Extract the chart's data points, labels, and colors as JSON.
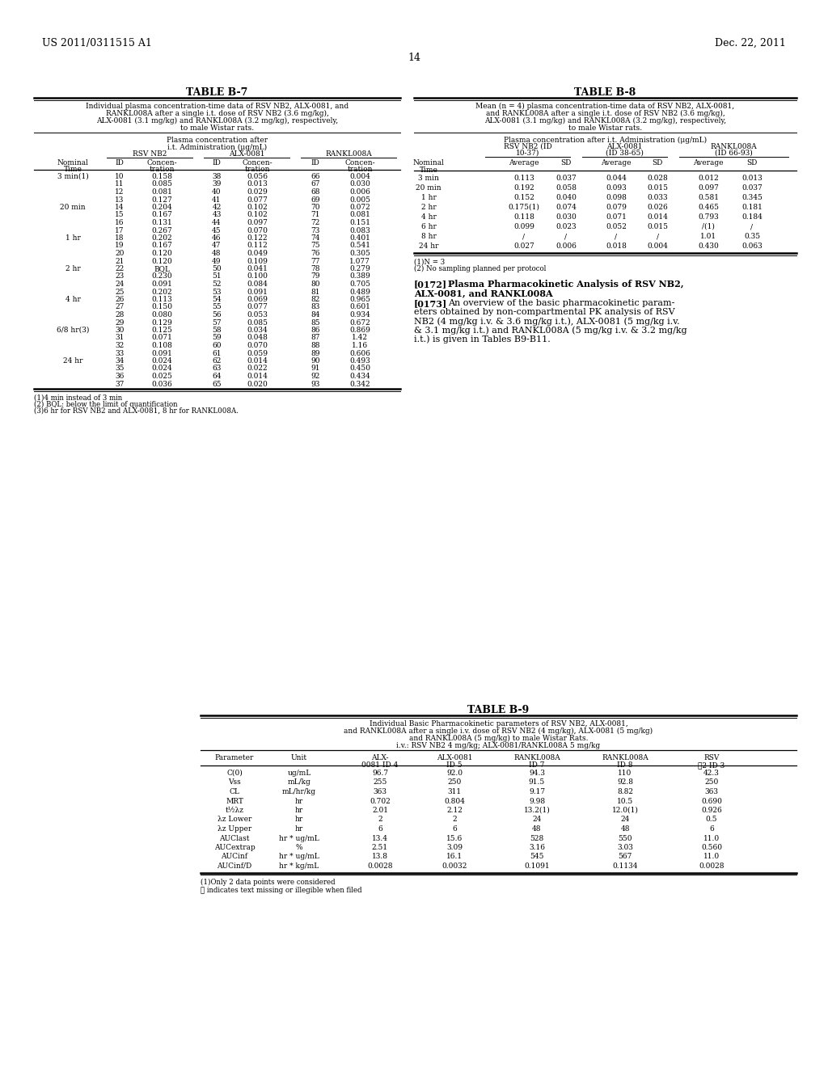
{
  "header_left": "US 2011/0311515 A1",
  "header_right": "Dec. 22, 2011",
  "page_number": "14",
  "table_b7_title": "TABLE B-7",
  "table_b7_caption_lines": [
    "Individual plasma concentration-time data of RSV NB2, ALX-0081, and",
    "RANKL008A after a single i.t. dose of RSV NB2 (3.6 mg/kg),",
    "ALX-0081 (3.1 mg/kg) and RANKL008A (3.2 mg/kg), respectively,",
    "to male Wistar rats."
  ],
  "table_b7_data": [
    [
      "3 min(1)",
      "10",
      "0.158",
      "38",
      "0.056",
      "66",
      "0.004"
    ],
    [
      "",
      "11",
      "0.085",
      "39",
      "0.013",
      "67",
      "0.030"
    ],
    [
      "",
      "12",
      "0.081",
      "40",
      "0.029",
      "68",
      "0.006"
    ],
    [
      "",
      "13",
      "0.127",
      "41",
      "0.077",
      "69",
      "0.005"
    ],
    [
      "20 min",
      "14",
      "0.204",
      "42",
      "0.102",
      "70",
      "0.072"
    ],
    [
      "",
      "15",
      "0.167",
      "43",
      "0.102",
      "71",
      "0.081"
    ],
    [
      "",
      "16",
      "0.131",
      "44",
      "0.097",
      "72",
      "0.151"
    ],
    [
      "",
      "17",
      "0.267",
      "45",
      "0.070",
      "73",
      "0.083"
    ],
    [
      "1 hr",
      "18",
      "0.202",
      "46",
      "0.122",
      "74",
      "0.401"
    ],
    [
      "",
      "19",
      "0.167",
      "47",
      "0.112",
      "75",
      "0.541"
    ],
    [
      "",
      "20",
      "0.120",
      "48",
      "0.049",
      "76",
      "0.305"
    ],
    [
      "",
      "21",
      "0.120",
      "49",
      "0.109",
      "77",
      "1.077"
    ],
    [
      "2 hr",
      "22",
      "BQL",
      "50",
      "0.041",
      "78",
      "0.279"
    ],
    [
      "",
      "23",
      "0.230",
      "51",
      "0.100",
      "79",
      "0.389"
    ],
    [
      "",
      "24",
      "0.091",
      "52",
      "0.084",
      "80",
      "0.705"
    ],
    [
      "",
      "25",
      "0.202",
      "53",
      "0.091",
      "81",
      "0.489"
    ],
    [
      "4 hr",
      "26",
      "0.113",
      "54",
      "0.069",
      "82",
      "0.965"
    ],
    [
      "",
      "27",
      "0.150",
      "55",
      "0.077",
      "83",
      "0.601"
    ],
    [
      "",
      "28",
      "0.080",
      "56",
      "0.053",
      "84",
      "0.934"
    ],
    [
      "",
      "29",
      "0.129",
      "57",
      "0.085",
      "85",
      "0.672"
    ],
    [
      "6/8 hr(3)",
      "30",
      "0.125",
      "58",
      "0.034",
      "86",
      "0.869"
    ],
    [
      "",
      "31",
      "0.071",
      "59",
      "0.048",
      "87",
      "1.42"
    ],
    [
      "",
      "32",
      "0.108",
      "60",
      "0.070",
      "88",
      "1.16"
    ],
    [
      "",
      "33",
      "0.091",
      "61",
      "0.059",
      "89",
      "0.606"
    ],
    [
      "24 hr",
      "34",
      "0.024",
      "62",
      "0.014",
      "90",
      "0.493"
    ],
    [
      "",
      "35",
      "0.024",
      "63",
      "0.022",
      "91",
      "0.450"
    ],
    [
      "",
      "36",
      "0.025",
      "64",
      "0.014",
      "92",
      "0.434"
    ],
    [
      "",
      "37",
      "0.036",
      "65",
      "0.020",
      "93",
      "0.342"
    ]
  ],
  "table_b7_footnotes": [
    "(1)4 min instead of 3 min",
    "(2) BQL: below the limit of quantification",
    "(3)6 hr for RSV NB2 and ALX-0081, 8 hr for RANKL008A."
  ],
  "table_b8_title": "TABLE B-8",
  "table_b8_caption_lines": [
    "Mean (n = 4) plasma concentration-time data of RSV NB2, ALX-0081,",
    "and RANKL008A after a single i.t. dose of RSV NB2 (3.6 mg/kg),",
    "ALX-0081 (3.1 mg/kg) and RANKL008A (3.2 mg/kg), respectively,",
    "to male Wistar rats."
  ],
  "table_b8_data": [
    [
      "3 min",
      "0.113",
      "0.037",
      "0.044",
      "0.028",
      "0.012",
      "0.013"
    ],
    [
      "20 min",
      "0.192",
      "0.058",
      "0.093",
      "0.015",
      "0.097",
      "0.037"
    ],
    [
      "1 hr",
      "0.152",
      "0.040",
      "0.098",
      "0.033",
      "0.581",
      "0.345"
    ],
    [
      "2 hr",
      "0.175(1)",
      "0.074",
      "0.079",
      "0.026",
      "0.465",
      "0.181"
    ],
    [
      "4 hr",
      "0.118",
      "0.030",
      "0.071",
      "0.014",
      "0.793",
      "0.184"
    ],
    [
      "6 hr",
      "0.099",
      "0.023",
      "0.052",
      "0.015",
      "/(1)",
      "/"
    ],
    [
      "8 hr",
      "/",
      "/",
      "/",
      "/",
      "1.01",
      "0.35"
    ],
    [
      "24 hr",
      "0.027",
      "0.006",
      "0.018",
      "0.004",
      "0.430",
      "0.063"
    ]
  ],
  "table_b8_footnotes": [
    "(1)N = 3",
    "(2) No sampling planned per protocol"
  ],
  "para_172_lines": [
    "[bold][0172][/bold]    Plasma Pharmacokinetic Analysis of RSV NB2,",
    "ALX-0081, and RANKL008A"
  ],
  "para_173_lines": [
    "[bold][0173][/bold]    An overview of the basic pharmacokinetic param-",
    "eters obtained by non-compartmental PK analysis of RSV",
    "NB2 (4 mg/kg i.v. & 3.6 mg/kg i.t.), ALX-0081 (5 mg/kg i.v.",
    "& 3.1 mg/kg i.t.) and RANKL008A (5 mg/kg i.v. & 3.2 mg/kg",
    "i.t.) is given in Tables B9-B11."
  ],
  "table_b9_title": "TABLE B-9",
  "table_b9_caption_lines": [
    "Individual Basic Pharmacokinetic parameters of RSV NB2, ALX-0081,",
    "and RANKL008A after a single i.v. dose of RSV NB2 (4 mg/kg), ALX-0081 (5 mg/kg)",
    "and RANKL008A (5 mg/kg) to male Wistar Rats.",
    "i.v.: RSV NB2 4 mg/kg; ALX-0081/RANKL008A 5 mg/kg"
  ],
  "table_b9_data": [
    [
      "C(0)",
      "ug/mL",
      "96.7",
      "92.0",
      "94.3",
      "110",
      "42.3"
    ],
    [
      "Vss",
      "mL/kg",
      "255",
      "250",
      "91.5",
      "92.8",
      "250"
    ],
    [
      "CL",
      "mL/hr/kg",
      "363",
      "311",
      "9.17",
      "8.82",
      "363"
    ],
    [
      "MRT",
      "hr",
      "0.702",
      "0.804",
      "9.98",
      "10.5",
      "0.690"
    ],
    [
      "t½λz",
      "hr",
      "2.01",
      "2.12",
      "13.2(1)",
      "12.0(1)",
      "0.926"
    ],
    [
      "λz Lower",
      "hr",
      "2",
      "2",
      "24",
      "24",
      "0.5"
    ],
    [
      "λz Upper",
      "hr",
      "6",
      "6",
      "48",
      "48",
      "6"
    ],
    [
      "AUClast",
      "hr * ug/mL",
      "13.4",
      "15.6",
      "528",
      "550",
      "11.0"
    ],
    [
      "AUCextrap",
      "%",
      "2.51",
      "3.09",
      "3.16",
      "3.03",
      "0.560"
    ],
    [
      "AUCinf",
      "hr * ug/mL",
      "13.8",
      "16.1",
      "545",
      "567",
      "11.0"
    ],
    [
      "AUCinf/D",
      "hr * kg/mL",
      "0.0028",
      "0.0032",
      "0.1091",
      "0.1134",
      "0.0028"
    ]
  ],
  "table_b9_footnotes": [
    "(1)Only 2 data points were considered",
    "Ⓡ indicates text missing or illegible when filed"
  ]
}
